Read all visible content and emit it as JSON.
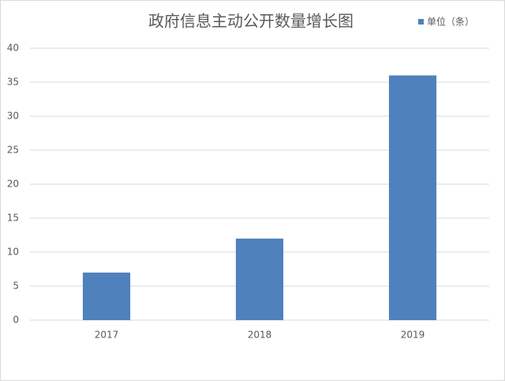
{
  "chart_data": {
    "type": "bar",
    "title": "政府信息主动公开数量增长图",
    "categories": [
      "2017",
      "2018",
      "2019"
    ],
    "series": [
      {
        "name": "单位（条）",
        "color": "#4f81bd",
        "values": [
          7,
          12,
          36
        ]
      }
    ],
    "ylim": [
      0,
      40
    ],
    "yticks": [
      0,
      5,
      10,
      15,
      20,
      25,
      30,
      35,
      40
    ],
    "grid": true,
    "legend": "top-right"
  }
}
